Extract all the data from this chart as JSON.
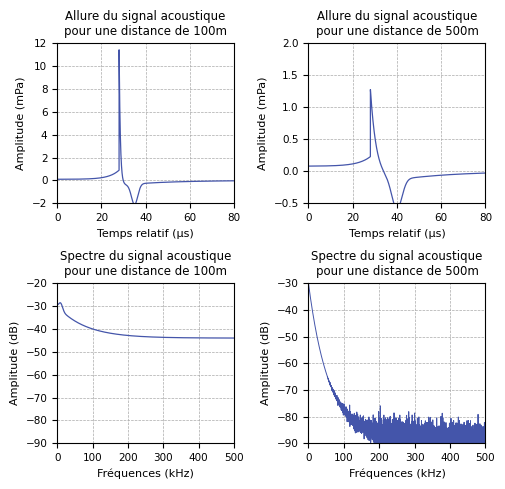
{
  "title_tl": "Allure du signal acoustique\npour une distance de 100m",
  "title_tr": "Allure du signal acoustique\npour une distance de 500m",
  "title_bl": "Spectre du signal acoustique\npour une distance de 100m",
  "title_br": "Spectre du signal acoustique\npour une distance de 500m",
  "xlabel_time": "Temps relatif (µs)",
  "xlabel_freq": "Fréquences (kHz)",
  "ylabel_amp_mpa": "Amplitude (mPa)",
  "ylabel_amp_db": "Amplitude (dB)",
  "time_xlim": [
    0,
    80
  ],
  "time_ylim_tl": [
    -2,
    12
  ],
  "time_ylim_tr": [
    -0.5,
    2
  ],
  "freq_xlim": [
    0,
    500
  ],
  "freq_ylim_bl": [
    -90,
    -20
  ],
  "freq_ylim_br": [
    -90,
    -30
  ],
  "line_color": "#4455aa",
  "background_color": "#ffffff",
  "title_fontsize": 8.5,
  "label_fontsize": 8,
  "tick_fontsize": 7.5
}
